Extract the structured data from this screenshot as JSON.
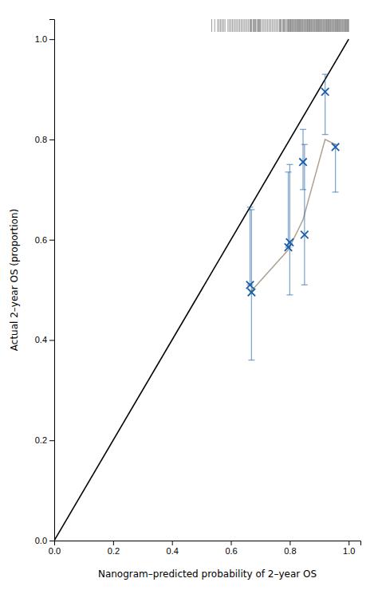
{
  "chart_data": {
    "type": "scatter",
    "xlabel": "Nanogram–predicted probability of 2–year OS",
    "ylabel": "Actual 2–year OS (proportion)",
    "xlim": [
      0.0,
      1.04
    ],
    "ylim": [
      0.0,
      1.04
    ],
    "xticks": [
      {
        "value": 0.0,
        "label": "0.0"
      },
      0.2,
      0.4,
      0.6,
      0.8,
      {
        "value": 1.0,
        "label": "1.0"
      }
    ],
    "yticks": [
      {
        "value": 0.0,
        "label": "0.0"
      },
      0.2,
      0.4,
      0.6,
      0.8,
      {
        "value": 1.0,
        "label": "1.0"
      }
    ],
    "grid": false,
    "series": [
      {
        "type": "line",
        "color": "#000000",
        "x": [
          0.0,
          1.0
        ],
        "values": [
          0.0,
          1.0
        ]
      },
      {
        "type": "line",
        "color": "#b0a090",
        "x": [
          0.665,
          0.795,
          0.845,
          0.92,
          0.955
        ],
        "values": [
          0.495,
          0.58,
          0.64,
          0.8,
          0.79
        ]
      },
      {
        "type": "scatter",
        "marker": "x",
        "color": "#1a5fa8",
        "x": [
          0.665,
          0.67,
          0.795,
          0.8,
          0.845,
          0.85,
          0.92,
          0.955
        ],
        "values": [
          0.51,
          0.495,
          0.585,
          0.595,
          0.755,
          0.61,
          0.895,
          0.785
        ],
        "error_low": [
          0.51,
          0.36,
          0.585,
          0.49,
          0.7,
          0.51,
          0.81,
          0.695
        ],
        "error_high": [
          0.665,
          0.66,
          0.735,
          0.75,
          0.82,
          0.79,
          0.93,
          0.79
        ]
      },
      {
        "type": "rug",
        "color": "#555555",
        "x": [
          0.535,
          0.545,
          0.555,
          0.56,
          0.565,
          0.57,
          0.575,
          0.58,
          0.59,
          0.595,
          0.6,
          0.605,
          0.61,
          0.615,
          0.62,
          0.625,
          0.63,
          0.635,
          0.64,
          0.645,
          0.65,
          0.655,
          0.66,
          0.665,
          0.668,
          0.67,
          0.675,
          0.678,
          0.68,
          0.683,
          0.685,
          0.69,
          0.693,
          0.695,
          0.698,
          0.7,
          0.705,
          0.71,
          0.715,
          0.72,
          0.725,
          0.73,
          0.735,
          0.74,
          0.745,
          0.75,
          0.755,
          0.76,
          0.765,
          0.768,
          0.77,
          0.775,
          0.778,
          0.78,
          0.783,
          0.785,
          0.79,
          0.793,
          0.795,
          0.798,
          0.8,
          0.803,
          0.805,
          0.808,
          0.81,
          0.813,
          0.815,
          0.818,
          0.82,
          0.823,
          0.825,
          0.828,
          0.83,
          0.833,
          0.835,
          0.838,
          0.84,
          0.843,
          0.845,
          0.848,
          0.85,
          0.853,
          0.855,
          0.858,
          0.86,
          0.863,
          0.865,
          0.868,
          0.87,
          0.873,
          0.875,
          0.878,
          0.88,
          0.883,
          0.885,
          0.888,
          0.89,
          0.893,
          0.895,
          0.898,
          0.9,
          0.903,
          0.905,
          0.908,
          0.91,
          0.913,
          0.915,
          0.918,
          0.92,
          0.923,
          0.925,
          0.928,
          0.93,
          0.933,
          0.935,
          0.938,
          0.94,
          0.943,
          0.945,
          0.948,
          0.95,
          0.953,
          0.955,
          0.958,
          0.96,
          0.963,
          0.965,
          0.968,
          0.97,
          0.973,
          0.975,
          0.978,
          0.98,
          0.983,
          0.985,
          0.988,
          0.99,
          0.993,
          0.995,
          0.998,
          1.0
        ]
      }
    ]
  }
}
